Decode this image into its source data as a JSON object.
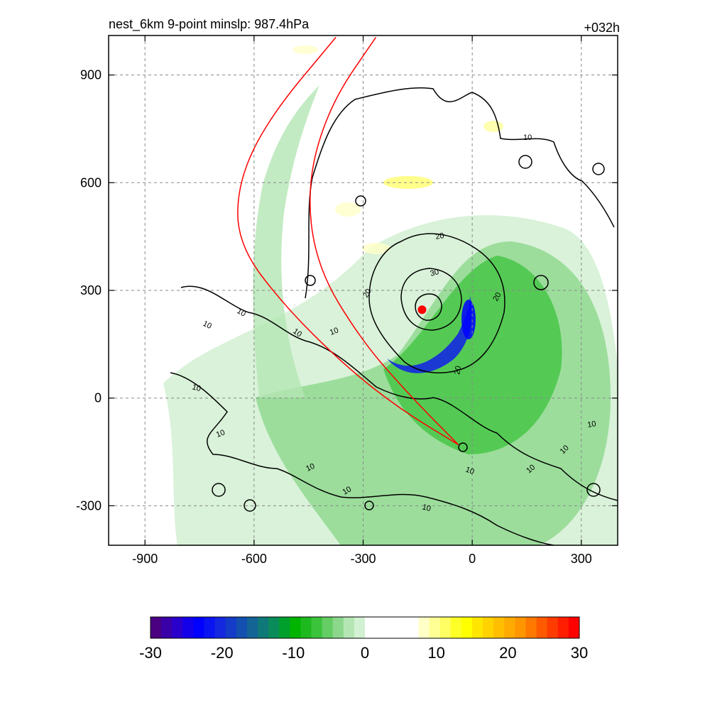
{
  "header": {
    "title": "nest_6km  9-point minslp: 987.4hPa",
    "forecast_hour": "+032h"
  },
  "chart_data": {
    "type": "heatmap",
    "xlim": [
      -1000,
      400
    ],
    "ylim": [
      -410,
      1010
    ],
    "grid": true,
    "grid_style": "dashed",
    "x_ticks": [
      -900,
      -600,
      -300,
      0,
      300
    ],
    "y_ticks": [
      900,
      600,
      300,
      0,
      -300
    ],
    "contour_levels": [
      10,
      20,
      30
    ],
    "contour_label_values": [
      "10",
      "10",
      "10",
      "10",
      "10",
      "10",
      "10",
      "10",
      "10",
      "10",
      "10",
      "10",
      "10",
      "10",
      "20",
      "20",
      "20",
      "20",
      "30"
    ],
    "storm_center": {
      "x": -138,
      "y": 246
    },
    "track_lines": [
      {
        "color": "#ff0000",
        "points": [
          [
            -38,
            -130
          ],
          [
            -200,
            -30
          ],
          [
            -350,
            90
          ],
          [
            -520,
            260
          ],
          [
            -645,
            430
          ],
          [
            -645,
            600
          ],
          [
            -560,
            780
          ],
          [
            -375,
            1005
          ]
        ]
      },
      {
        "color": "#ff0000",
        "points": [
          [
            -38,
            -130
          ],
          [
            -165,
            0
          ],
          [
            -305,
            160
          ],
          [
            -430,
            370
          ],
          [
            -455,
            600
          ],
          [
            -390,
            820
          ],
          [
            -265,
            1005
          ]
        ]
      }
    ],
    "colorbar": {
      "min": -30,
      "max": 30,
      "tick_labels": [
        "-30",
        "-20",
        "-10",
        "0",
        "10",
        "20",
        "30"
      ],
      "colors": [
        "#4b0082",
        "#3a00a8",
        "#2a00cc",
        "#1500ea",
        "#0000ff",
        "#0a14f0",
        "#1428e0",
        "#143cc8",
        "#1450b0",
        "#146496",
        "#0f7878",
        "#0a8c5a",
        "#00a02d",
        "#00b400",
        "#1eb91e",
        "#3cc33c",
        "#64cd64",
        "#8cd78c",
        "#b4e6b4",
        "#d2f0d2",
        "#ffffff",
        "#ffffff",
        "#ffffff",
        "#ffffff",
        "#ffffff",
        "#ffffc8",
        "#ffff96",
        "#ffff64",
        "#ffff28",
        "#ffff00",
        "#ffe600",
        "#ffd200",
        "#ffbe00",
        "#ffaa00",
        "#ff9600",
        "#ff7800",
        "#ff5a00",
        "#ff3c00",
        "#ff1e00",
        "#ff0000"
      ]
    }
  }
}
